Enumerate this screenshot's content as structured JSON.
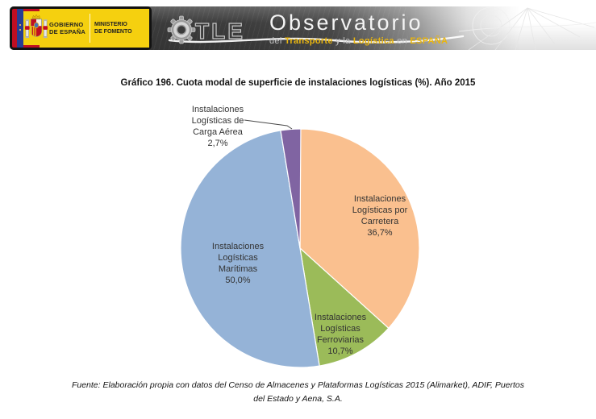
{
  "header": {
    "government": {
      "gobierno_line1": "GOBIERNO",
      "gobierno_line2": "DE ESPAÑA",
      "ministerio_line1": "MINISTERIO",
      "ministerio_line2": "DE FOMENTO"
    },
    "otle_acronym_rest": "TLE",
    "brand": {
      "title": "Observatorio",
      "sub_del": "del",
      "sub_transporte": "Transporte",
      "sub_y_la": "y la",
      "sub_logistica": "Logística",
      "sub_en": "en",
      "sub_espana": "ESPAÑA"
    },
    "colors": {
      "accent_yellow": "#E9B50F",
      "logo_yellow": "#F5D00F",
      "flag_red": "#C00E22",
      "flag_blue": "#273E94"
    }
  },
  "chart_data": {
    "type": "pie",
    "title": "Gráfico 196. Cuota modal de superficie de instalaciones logísticas (%). Año 2015",
    "unit": "%",
    "start_angle_deg": 0,
    "direction": "clockwise",
    "legend": "none",
    "slices": [
      {
        "id": "carretera",
        "name": "Instalaciones Logísticas por Carretera",
        "value": 36.7,
        "color": "#FAC08F",
        "label": "Instalaciones\nLogísticas por\nCarretera\n36,7%",
        "label_position": "inside"
      },
      {
        "id": "ferroviarias",
        "name": "Instalaciones Logísticas Ferroviarias",
        "value": 10.7,
        "color": "#9BBB59",
        "label": "Instalaciones\nLogísticas\nFerroviarias\n10,7%",
        "label_position": "inside"
      },
      {
        "id": "maritimas",
        "name": "Instalaciones Logísticas Marítimas",
        "value": 50.0,
        "color": "#95B3D7",
        "label": "Instalaciones\nLogísticas\nMarítimas\n50,0%",
        "label_position": "inside"
      },
      {
        "id": "carga-aerea",
        "name": "Instalaciones Logísticas de Carga Aérea",
        "value": 2.7,
        "color": "#8064A2",
        "label": "Instalaciones\nLogísticas de\nCarga Aérea\n2,7%",
        "label_position": "outside-top-left"
      }
    ]
  },
  "footer": {
    "source": "Fuente: Elaboración propia con datos del Censo de Almacenes y Plataformas Logísticas 2015 (Alimarket), ADIF, Puertos\ndel Estado y Aena, S.A."
  }
}
